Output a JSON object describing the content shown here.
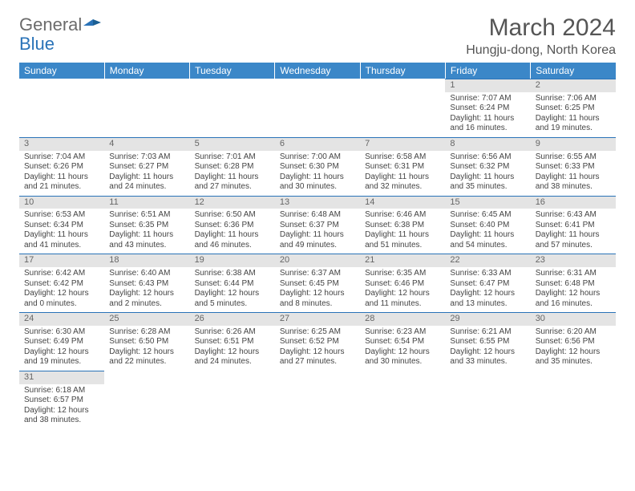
{
  "logo": {
    "general": "General",
    "blue": "Blue"
  },
  "title": "March 2024",
  "location": "Hungju-dong, North Korea",
  "weekdays": [
    "Sunday",
    "Monday",
    "Tuesday",
    "Wednesday",
    "Thursday",
    "Friday",
    "Saturday"
  ],
  "colors": {
    "headerBg": "#3b87c8",
    "accent": "#2a73b8",
    "dayBg": "#e4e4e4"
  },
  "startWeekday": 5,
  "days": [
    {
      "n": 1,
      "sr": "7:07 AM",
      "ss": "6:24 PM",
      "dl": "11 hours and 16 minutes."
    },
    {
      "n": 2,
      "sr": "7:06 AM",
      "ss": "6:25 PM",
      "dl": "11 hours and 19 minutes."
    },
    {
      "n": 3,
      "sr": "7:04 AM",
      "ss": "6:26 PM",
      "dl": "11 hours and 21 minutes."
    },
    {
      "n": 4,
      "sr": "7:03 AM",
      "ss": "6:27 PM",
      "dl": "11 hours and 24 minutes."
    },
    {
      "n": 5,
      "sr": "7:01 AM",
      "ss": "6:28 PM",
      "dl": "11 hours and 27 minutes."
    },
    {
      "n": 6,
      "sr": "7:00 AM",
      "ss": "6:30 PM",
      "dl": "11 hours and 30 minutes."
    },
    {
      "n": 7,
      "sr": "6:58 AM",
      "ss": "6:31 PM",
      "dl": "11 hours and 32 minutes."
    },
    {
      "n": 8,
      "sr": "6:56 AM",
      "ss": "6:32 PM",
      "dl": "11 hours and 35 minutes."
    },
    {
      "n": 9,
      "sr": "6:55 AM",
      "ss": "6:33 PM",
      "dl": "11 hours and 38 minutes."
    },
    {
      "n": 10,
      "sr": "6:53 AM",
      "ss": "6:34 PM",
      "dl": "11 hours and 41 minutes."
    },
    {
      "n": 11,
      "sr": "6:51 AM",
      "ss": "6:35 PM",
      "dl": "11 hours and 43 minutes."
    },
    {
      "n": 12,
      "sr": "6:50 AM",
      "ss": "6:36 PM",
      "dl": "11 hours and 46 minutes."
    },
    {
      "n": 13,
      "sr": "6:48 AM",
      "ss": "6:37 PM",
      "dl": "11 hours and 49 minutes."
    },
    {
      "n": 14,
      "sr": "6:46 AM",
      "ss": "6:38 PM",
      "dl": "11 hours and 51 minutes."
    },
    {
      "n": 15,
      "sr": "6:45 AM",
      "ss": "6:40 PM",
      "dl": "11 hours and 54 minutes."
    },
    {
      "n": 16,
      "sr": "6:43 AM",
      "ss": "6:41 PM",
      "dl": "11 hours and 57 minutes."
    },
    {
      "n": 17,
      "sr": "6:42 AM",
      "ss": "6:42 PM",
      "dl": "12 hours and 0 minutes."
    },
    {
      "n": 18,
      "sr": "6:40 AM",
      "ss": "6:43 PM",
      "dl": "12 hours and 2 minutes."
    },
    {
      "n": 19,
      "sr": "6:38 AM",
      "ss": "6:44 PM",
      "dl": "12 hours and 5 minutes."
    },
    {
      "n": 20,
      "sr": "6:37 AM",
      "ss": "6:45 PM",
      "dl": "12 hours and 8 minutes."
    },
    {
      "n": 21,
      "sr": "6:35 AM",
      "ss": "6:46 PM",
      "dl": "12 hours and 11 minutes."
    },
    {
      "n": 22,
      "sr": "6:33 AM",
      "ss": "6:47 PM",
      "dl": "12 hours and 13 minutes."
    },
    {
      "n": 23,
      "sr": "6:31 AM",
      "ss": "6:48 PM",
      "dl": "12 hours and 16 minutes."
    },
    {
      "n": 24,
      "sr": "6:30 AM",
      "ss": "6:49 PM",
      "dl": "12 hours and 19 minutes."
    },
    {
      "n": 25,
      "sr": "6:28 AM",
      "ss": "6:50 PM",
      "dl": "12 hours and 22 minutes."
    },
    {
      "n": 26,
      "sr": "6:26 AM",
      "ss": "6:51 PM",
      "dl": "12 hours and 24 minutes."
    },
    {
      "n": 27,
      "sr": "6:25 AM",
      "ss": "6:52 PM",
      "dl": "12 hours and 27 minutes."
    },
    {
      "n": 28,
      "sr": "6:23 AM",
      "ss": "6:54 PM",
      "dl": "12 hours and 30 minutes."
    },
    {
      "n": 29,
      "sr": "6:21 AM",
      "ss": "6:55 PM",
      "dl": "12 hours and 33 minutes."
    },
    {
      "n": 30,
      "sr": "6:20 AM",
      "ss": "6:56 PM",
      "dl": "12 hours and 35 minutes."
    },
    {
      "n": 31,
      "sr": "6:18 AM",
      "ss": "6:57 PM",
      "dl": "12 hours and 38 minutes."
    }
  ],
  "labels": {
    "sunrise": "Sunrise:",
    "sunset": "Sunset:",
    "daylight": "Daylight:"
  }
}
